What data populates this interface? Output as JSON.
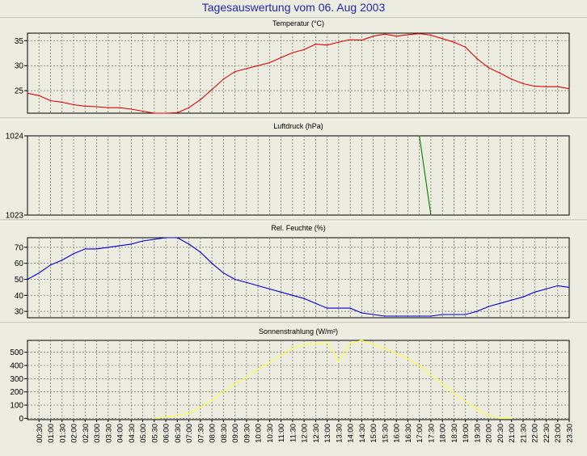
{
  "page": {
    "title": "Tagesauswertung vom 06. Aug 2003"
  },
  "x_ticks": [
    "00:30",
    "01:00",
    "01:30",
    "02:00",
    "02:30",
    "03:00",
    "03:30",
    "04:00",
    "04:30",
    "05:00",
    "05:30",
    "06:00",
    "06:30",
    "07:00",
    "07:30",
    "08:00",
    "08:30",
    "09:00",
    "09:30",
    "10:00",
    "10:30",
    "11:00",
    "11:30",
    "12:00",
    "12:30",
    "13:00",
    "13:30",
    "14:00",
    "14:30",
    "15:00",
    "15:30",
    "16:00",
    "16:30",
    "17:00",
    "17:30",
    "18:00",
    "18:30",
    "19:00",
    "19:30",
    "20:00",
    "20:30",
    "21:00",
    "21:30",
    "22:00",
    "22:30",
    "23:00",
    "23:30"
  ],
  "chart_data": [
    {
      "type": "line",
      "title": "Temperatur (°C)",
      "xlabel": "",
      "ylabel": "",
      "ylim": [
        20.5,
        36.5
      ],
      "yticks": [
        25,
        30,
        35
      ],
      "grid": true,
      "color": "#e00000",
      "x": [
        "00:00",
        "00:30",
        "01:00",
        "01:30",
        "02:00",
        "02:30",
        "03:00",
        "03:30",
        "04:00",
        "04:30",
        "05:00",
        "05:30",
        "06:00",
        "06:30",
        "07:00",
        "07:30",
        "08:00",
        "08:30",
        "09:00",
        "09:30",
        "10:00",
        "10:30",
        "11:00",
        "11:30",
        "12:00",
        "12:30",
        "13:00",
        "13:30",
        "14:00",
        "14:30",
        "15:00",
        "15:30",
        "16:00",
        "16:30",
        "17:00",
        "17:30",
        "18:00",
        "18:30",
        "19:00",
        "19:30",
        "20:00",
        "20:30",
        "21:00",
        "21:30",
        "22:00",
        "22:30",
        "23:00",
        "23:30"
      ],
      "values": [
        24.5,
        24.0,
        23.0,
        22.7,
        22.2,
        21.9,
        21.8,
        21.6,
        21.6,
        21.3,
        20.9,
        20.5,
        20.5,
        20.6,
        21.6,
        23.2,
        25.2,
        27.3,
        28.8,
        29.4,
        30.0,
        30.6,
        31.6,
        32.6,
        33.2,
        34.3,
        34.1,
        34.7,
        35.2,
        35.1,
        35.9,
        36.3,
        35.9,
        36.2,
        36.4,
        36.1,
        35.4,
        34.7,
        33.7,
        31.4,
        29.6,
        28.5,
        27.3,
        26.4,
        25.9,
        25.8,
        25.8,
        25.4
      ]
    },
    {
      "type": "line",
      "title": "Luftdruck (hPa)",
      "xlabel": "",
      "ylabel": "",
      "ylim": [
        1023,
        1024
      ],
      "yticks": [
        1023,
        1024
      ],
      "grid": true,
      "color": "#008000",
      "x": [
        "17:00",
        "17:30"
      ],
      "values": [
        1024,
        1023
      ]
    },
    {
      "type": "line",
      "title": "Rel. Feuchte (%)",
      "xlabel": "",
      "ylabel": "",
      "ylim": [
        26,
        76
      ],
      "yticks": [
        30,
        40,
        50,
        60,
        70
      ],
      "grid": true,
      "color": "#0000cc",
      "x": [
        "00:00",
        "00:30",
        "01:00",
        "01:30",
        "02:00",
        "02:30",
        "03:00",
        "03:30",
        "04:00",
        "04:30",
        "05:00",
        "05:30",
        "06:00",
        "06:30",
        "07:00",
        "07:30",
        "08:00",
        "08:30",
        "09:00",
        "09:30",
        "10:00",
        "10:30",
        "11:00",
        "11:30",
        "12:00",
        "12:30",
        "13:00",
        "13:30",
        "14:00",
        "14:30",
        "15:00",
        "15:30",
        "16:00",
        "16:30",
        "17:00",
        "17:30",
        "18:00",
        "18:30",
        "19:00",
        "19:30",
        "20:00",
        "20:30",
        "21:00",
        "21:30",
        "22:00",
        "22:30",
        "23:00",
        "23:30"
      ],
      "values": [
        50,
        54,
        59,
        62,
        66,
        69,
        69,
        70,
        71,
        72,
        74,
        75,
        76,
        76,
        72,
        67,
        60,
        54,
        50,
        48,
        46,
        44,
        42,
        40,
        38,
        35,
        32,
        32,
        32,
        29,
        28,
        27,
        27,
        27,
        27,
        27,
        28,
        28,
        28,
        30,
        33,
        35,
        37,
        39,
        42,
        44,
        46,
        45
      ]
    },
    {
      "type": "line",
      "title": "Sonnenstrahlung (W/m²)",
      "xlabel": "",
      "ylabel": "",
      "ylim": [
        -10,
        590
      ],
      "yticks": [
        0,
        100,
        200,
        300,
        400,
        500
      ],
      "grid": true,
      "color": "#ffff40",
      "x": [
        "05:30",
        "06:00",
        "06:30",
        "07:00",
        "07:30",
        "08:00",
        "08:30",
        "09:00",
        "09:30",
        "10:00",
        "10:30",
        "11:00",
        "11:30",
        "12:00",
        "12:30",
        "13:00",
        "13:30",
        "14:00",
        "14:30",
        "15:00",
        "15:30",
        "16:00",
        "16:30",
        "17:00",
        "17:30",
        "18:00",
        "18:30",
        "19:00",
        "19:30",
        "20:00",
        "20:30",
        "21:00"
      ],
      "values": [
        0,
        10,
        20,
        40,
        80,
        140,
        200,
        260,
        310,
        370,
        420,
        480,
        530,
        560,
        560,
        580,
        430,
        570,
        590,
        560,
        530,
        490,
        450,
        400,
        330,
        260,
        190,
        130,
        70,
        20,
        0,
        0
      ]
    }
  ]
}
